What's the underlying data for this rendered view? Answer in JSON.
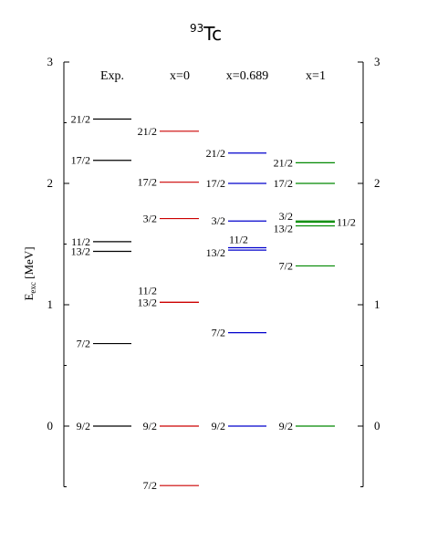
{
  "chart_data": {
    "type": "level-scheme",
    "title": {
      "sup": "93",
      "main": "Tc"
    },
    "ylabel": {
      "main": "E",
      "sub": "exc",
      "unit": " [MeV]"
    },
    "ylim": [
      -0.5,
      3
    ],
    "yticks": [
      0,
      1,
      2,
      3
    ],
    "columns": [
      {
        "name": "Exp.",
        "color": "#000000",
        "levels": [
          {
            "label": "21/2",
            "energy": 2.53
          },
          {
            "label": "17/2",
            "energy": 2.19
          },
          {
            "label": "11/2",
            "energy": 1.52
          },
          {
            "label": "13/2",
            "energy": 1.44
          },
          {
            "label": "7/2",
            "energy": 0.68
          },
          {
            "label": "9/2",
            "energy": 0.0
          }
        ]
      },
      {
        "name": "x=0",
        "color": "#cc0000",
        "levels": [
          {
            "label": "21/2",
            "energy": 2.43
          },
          {
            "label": "17/2",
            "energy": 2.01
          },
          {
            "label": "3/2",
            "energy": 1.71
          },
          {
            "label": "11/2",
            "energy": 1.02
          },
          {
            "label": "13/2",
            "energy": 1.02
          },
          {
            "label": "9/2",
            "energy": 0.0
          },
          {
            "label": "7/2",
            "energy": -0.49
          }
        ]
      },
      {
        "name": "x=0.689",
        "color": "#0000cc",
        "levels": [
          {
            "label": "21/2",
            "energy": 2.25
          },
          {
            "label": "17/2",
            "energy": 2.0
          },
          {
            "label": "3/2",
            "energy": 1.69
          },
          {
            "label": "11/2",
            "energy": 1.47
          },
          {
            "label": "13/2",
            "energy": 1.45
          },
          {
            "label": "7/2",
            "energy": 0.77
          },
          {
            "label": "9/2",
            "energy": 0.0
          }
        ]
      },
      {
        "name": "x=1",
        "color": "#008800",
        "levels": [
          {
            "label": "21/2",
            "energy": 2.17
          },
          {
            "label": "17/2",
            "energy": 2.0
          },
          {
            "label": "3/2",
            "energy": 1.69
          },
          {
            "label": "11/2",
            "energy": 1.68
          },
          {
            "label": "13/2",
            "energy": 1.65
          },
          {
            "label": "7/2",
            "energy": 1.32
          },
          {
            "label": "9/2",
            "energy": 0.0
          }
        ]
      }
    ]
  }
}
